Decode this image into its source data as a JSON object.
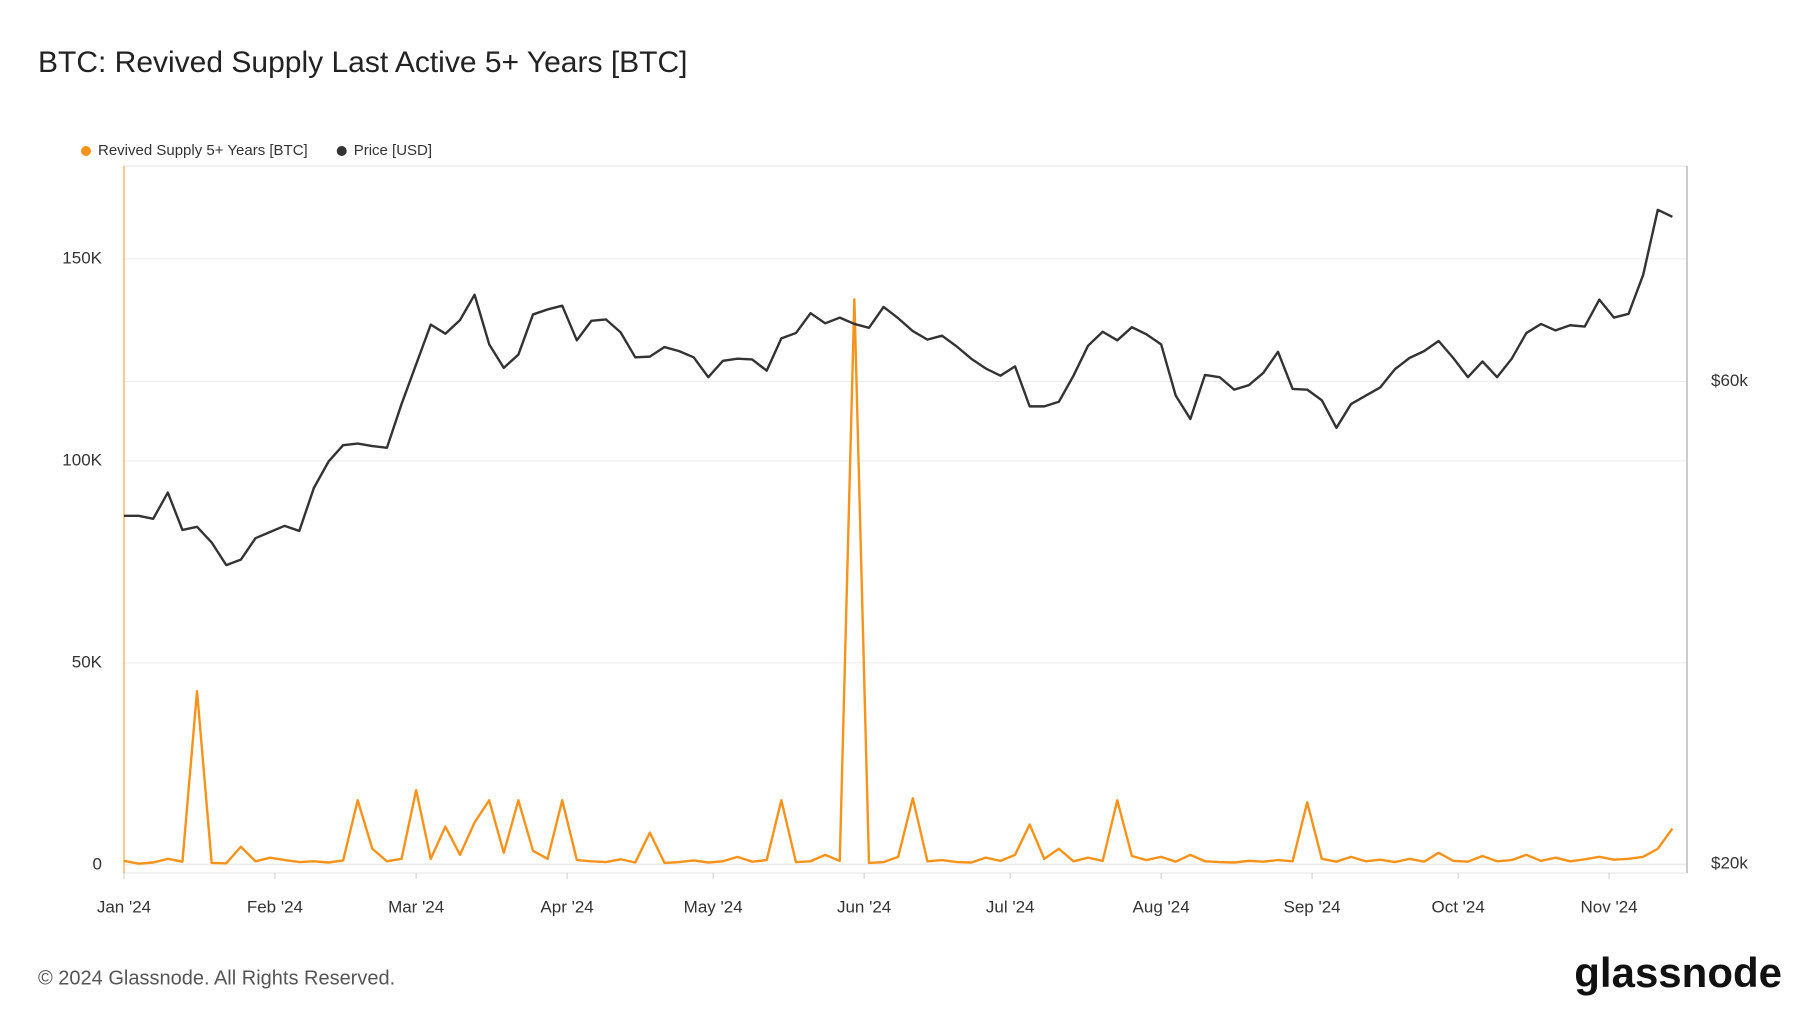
{
  "chart_data": {
    "type": "line",
    "title": "BTC: Revived Supply Last Active 5+ Years [BTC]",
    "footer": "© 2024 Glassnode. All Rights Reserved.",
    "brand": "glassnode",
    "legend": "top-left",
    "grid": true,
    "x": [
      "2024-01-01",
      "2024-01-04",
      "2024-01-07",
      "2024-01-10",
      "2024-01-13",
      "2024-01-16",
      "2024-01-19",
      "2024-01-22",
      "2024-01-25",
      "2024-01-28",
      "2024-01-31",
      "2024-02-03",
      "2024-02-06",
      "2024-02-09",
      "2024-02-12",
      "2024-02-15",
      "2024-02-18",
      "2024-02-21",
      "2024-02-24",
      "2024-02-27",
      "2024-03-01",
      "2024-03-04",
      "2024-03-07",
      "2024-03-10",
      "2024-03-13",
      "2024-03-16",
      "2024-03-19",
      "2024-03-22",
      "2024-03-25",
      "2024-03-28",
      "2024-03-31",
      "2024-04-03",
      "2024-04-06",
      "2024-04-09",
      "2024-04-12",
      "2024-04-15",
      "2024-04-18",
      "2024-04-21",
      "2024-04-24",
      "2024-04-27",
      "2024-04-30",
      "2024-05-03",
      "2024-05-06",
      "2024-05-09",
      "2024-05-12",
      "2024-05-15",
      "2024-05-18",
      "2024-05-21",
      "2024-05-24",
      "2024-05-27",
      "2024-05-30",
      "2024-06-02",
      "2024-06-05",
      "2024-06-08",
      "2024-06-11",
      "2024-06-14",
      "2024-06-17",
      "2024-06-20",
      "2024-06-23",
      "2024-06-26",
      "2024-06-29",
      "2024-07-02",
      "2024-07-05",
      "2024-07-08",
      "2024-07-11",
      "2024-07-14",
      "2024-07-17",
      "2024-07-20",
      "2024-07-23",
      "2024-07-26",
      "2024-07-29",
      "2024-08-01",
      "2024-08-04",
      "2024-08-07",
      "2024-08-10",
      "2024-08-13",
      "2024-08-16",
      "2024-08-19",
      "2024-08-22",
      "2024-08-25",
      "2024-08-28",
      "2024-08-31",
      "2024-09-03",
      "2024-09-06",
      "2024-09-09",
      "2024-09-12",
      "2024-09-15",
      "2024-09-18",
      "2024-09-21",
      "2024-09-24",
      "2024-09-27",
      "2024-09-30",
      "2024-10-03",
      "2024-10-06",
      "2024-10-09",
      "2024-10-12",
      "2024-10-15",
      "2024-10-18",
      "2024-10-21",
      "2024-10-24",
      "2024-10-27",
      "2024-10-30",
      "2024-11-02",
      "2024-11-05",
      "2024-11-08",
      "2024-11-11",
      "2024-11-14"
    ],
    "xlim": [
      "2024-01-01",
      "2024-11-17"
    ],
    "xticks": [
      {
        "value": "2024-01-01",
        "label": "Jan '24"
      },
      {
        "value": "2024-02-01",
        "label": "Feb '24"
      },
      {
        "value": "2024-03-01",
        "label": "Mar '24"
      },
      {
        "value": "2024-04-01",
        "label": "Apr '24"
      },
      {
        "value": "2024-05-01",
        "label": "May '24"
      },
      {
        "value": "2024-06-01",
        "label": "Jun '24"
      },
      {
        "value": "2024-07-01",
        "label": "Jul '24"
      },
      {
        "value": "2024-08-01",
        "label": "Aug '24"
      },
      {
        "value": "2024-09-01",
        "label": "Sep '24"
      },
      {
        "value": "2024-10-01",
        "label": "Oct '24"
      },
      {
        "value": "2024-11-01",
        "label": "Nov '24"
      }
    ],
    "ylim": [
      -2000,
      173000
    ],
    "yticks": [
      0,
      {
        "value": 50000,
        "label": "50K"
      },
      {
        "value": 100000,
        "label": "100K"
      },
      {
        "value": 150000,
        "label": "150K"
      }
    ],
    "y2lim": [
      19600,
      98000
    ],
    "y2scale": "log",
    "y2ticks": [
      {
        "value": 20000,
        "label": "$20k"
      },
      {
        "value": 60000,
        "label": "$60k"
      }
    ],
    "series": [
      {
        "name": "Revived Supply 5+ Years [BTC]",
        "color": "#f7931a",
        "values": [
          1000,
          300,
          600,
          1500,
          800,
          43000,
          500,
          400,
          4500,
          900,
          1800,
          1200,
          700,
          900,
          600,
          1100,
          16000,
          4000,
          900,
          1500,
          18500,
          1500,
          9500,
          2500,
          10500,
          16000,
          3000,
          16000,
          3500,
          1500,
          16000,
          1200,
          900,
          700,
          1400,
          600,
          8000,
          500,
          700,
          1100,
          600,
          900,
          2000,
          800,
          1200,
          16000,
          700,
          900,
          2500,
          1000,
          140000,
          500,
          700,
          2000,
          16500,
          900,
          1200,
          700,
          600,
          1800,
          1000,
          2500,
          10000,
          1500,
          4000,
          900,
          1800,
          1000,
          16000,
          2200,
          1200,
          2000,
          800,
          2500,
          900,
          700,
          600,
          1000,
          800,
          1200,
          900,
          15500,
          1500,
          800,
          2000,
          900,
          1300,
          700,
          1500,
          800,
          3000,
          1000,
          800,
          2200,
          900,
          1200,
          2500,
          1000,
          1800,
          900,
          1400,
          2000,
          1300,
          1500,
          2000,
          4000,
          9000
        ]
      },
      {
        "name": "Price [USD]",
        "color": "#333333",
        "axis": "y2",
        "values": [
          44200,
          44200,
          43900,
          46600,
          42800,
          43100,
          41600,
          39500,
          40000,
          42000,
          42600,
          43200,
          42700,
          47100,
          50000,
          51900,
          52100,
          51800,
          51600,
          57000,
          62400,
          68300,
          66900,
          69000,
          73100,
          65300,
          61900,
          63800,
          69900,
          70700,
          71300,
          65900,
          68900,
          69100,
          67100,
          63400,
          63500,
          64900,
          64300,
          63400,
          60600,
          62900,
          63200,
          63100,
          61500,
          66200,
          67000,
          70100,
          68500,
          69400,
          68400,
          67800,
          71100,
          69300,
          67300,
          66000,
          66600,
          65000,
          63200,
          61800,
          60800,
          62100,
          56700,
          56700,
          57300,
          60800,
          65100,
          67200,
          65900,
          67900,
          66800,
          65300,
          58100,
          55100,
          60900,
          60600,
          58900,
          59500,
          61200,
          64200,
          59000,
          58900,
          57500,
          54000,
          57000,
          58100,
          59200,
          61700,
          63300,
          64300,
          65800,
          63300,
          60600,
          62800,
          60600,
          63200,
          67000,
          68400,
          67400,
          68200,
          68000,
          72300,
          69400,
          70000,
          76500,
          88700,
          87300
        ]
      }
    ]
  }
}
